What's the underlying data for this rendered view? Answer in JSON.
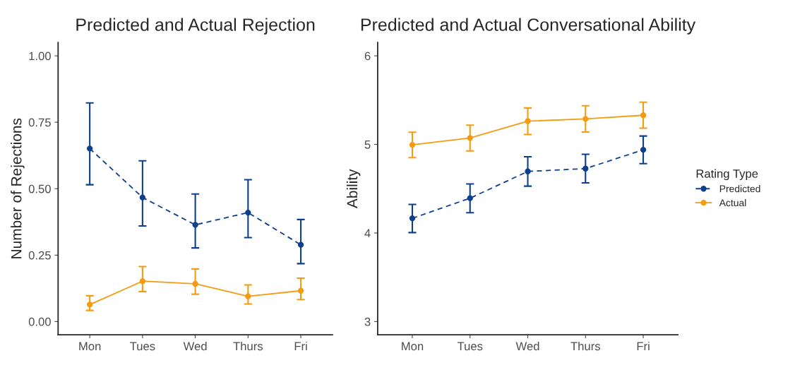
{
  "chart_data": [
    {
      "type": "line",
      "title": "Predicted and Actual Rejection",
      "ylabel": "Number of Rejections",
      "categories": [
        "Mon",
        "Tues",
        "Wed",
        "Thurs",
        "Fri"
      ],
      "ylim": [
        -0.05,
        1.05
      ],
      "yticks": [
        {
          "value": 0,
          "label": "0.00"
        },
        {
          "value": 0.25,
          "label": "0.25"
        },
        {
          "value": 0.5,
          "label": "0.50"
        },
        {
          "value": 0.75,
          "label": "0.75"
        },
        {
          "value": 1,
          "label": "1.00"
        }
      ],
      "grid": false,
      "marker": "circle",
      "series": [
        {
          "color": "#0d3f8c",
          "line_style": "dashed",
          "values": [
            0.651,
            0.467,
            0.364,
            0.41,
            0.289
          ],
          "errors": [
            [
              0.515,
              0.823
            ],
            [
              0.36,
              0.605
            ],
            [
              0.277,
              0.48
            ],
            [
              0.316,
              0.534
            ],
            [
              0.218,
              0.384
            ]
          ]
        },
        {
          "color": "#f39c12",
          "line_style": "solid",
          "values": [
            0.064,
            0.152,
            0.142,
            0.095,
            0.116
          ],
          "errors": [
            [
              0.042,
              0.097
            ],
            [
              0.113,
              0.207
            ],
            [
              0.103,
              0.198
            ],
            [
              0.066,
              0.138
            ],
            [
              0.083,
              0.163
            ]
          ]
        }
      ]
    },
    {
      "type": "line",
      "title": "Predicted and Actual Conversational Ability",
      "ylabel": "Ability",
      "categories": [
        "Mon",
        "Tues",
        "Wed",
        "Thurs",
        "Fri"
      ],
      "ylim": [
        2.85,
        6.15
      ],
      "yticks": [
        3,
        4,
        5,
        6
      ],
      "grid": false,
      "marker": "circle",
      "legend": "right",
      "legend_title": "Rating Type",
      "series": [
        {
          "name": "Predicted",
          "color": "#0d3f8c",
          "line_style": "dashed",
          "values": [
            4.166,
            4.393,
            4.695,
            4.727,
            4.939
          ],
          "errors": [
            [
              4.005,
              4.322
            ],
            [
              4.229,
              4.554
            ],
            [
              4.529,
              4.861
            ],
            [
              4.566,
              4.888
            ],
            [
              4.783,
              5.095
            ]
          ]
        },
        {
          "name": "Actual",
          "color": "#f39c12",
          "line_style": "solid",
          "values": [
            4.995,
            5.073,
            5.263,
            5.288,
            5.329
          ],
          "errors": [
            [
              4.851,
              5.137
            ],
            [
              4.927,
              5.217
            ],
            [
              5.112,
              5.412
            ],
            [
              5.139,
              5.437
            ],
            [
              5.183,
              5.476
            ]
          ]
        }
      ]
    }
  ]
}
